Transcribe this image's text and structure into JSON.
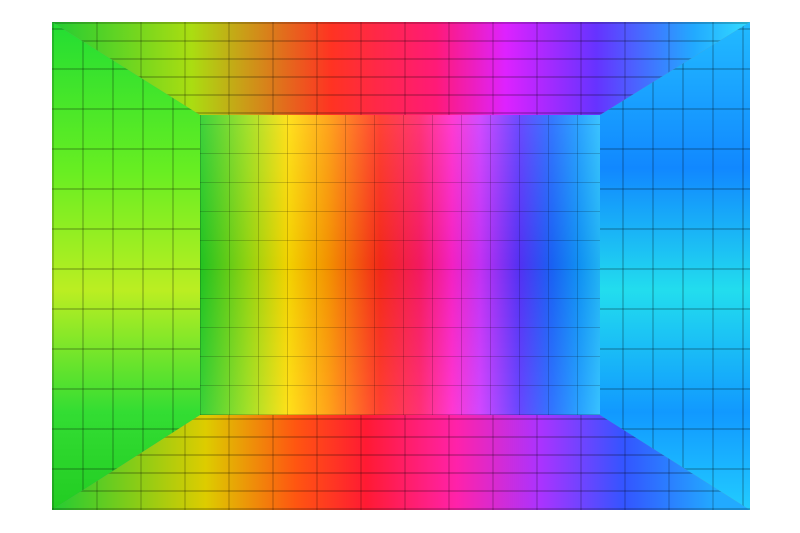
{
  "image": {
    "subject": "rainbow-cube-room",
    "palette": [
      "#22cc22",
      "#ffdd00",
      "#ff9900",
      "#ff2a1a",
      "#ff22cc",
      "#5533ff",
      "#1a66ff",
      "#22bbff"
    ]
  }
}
